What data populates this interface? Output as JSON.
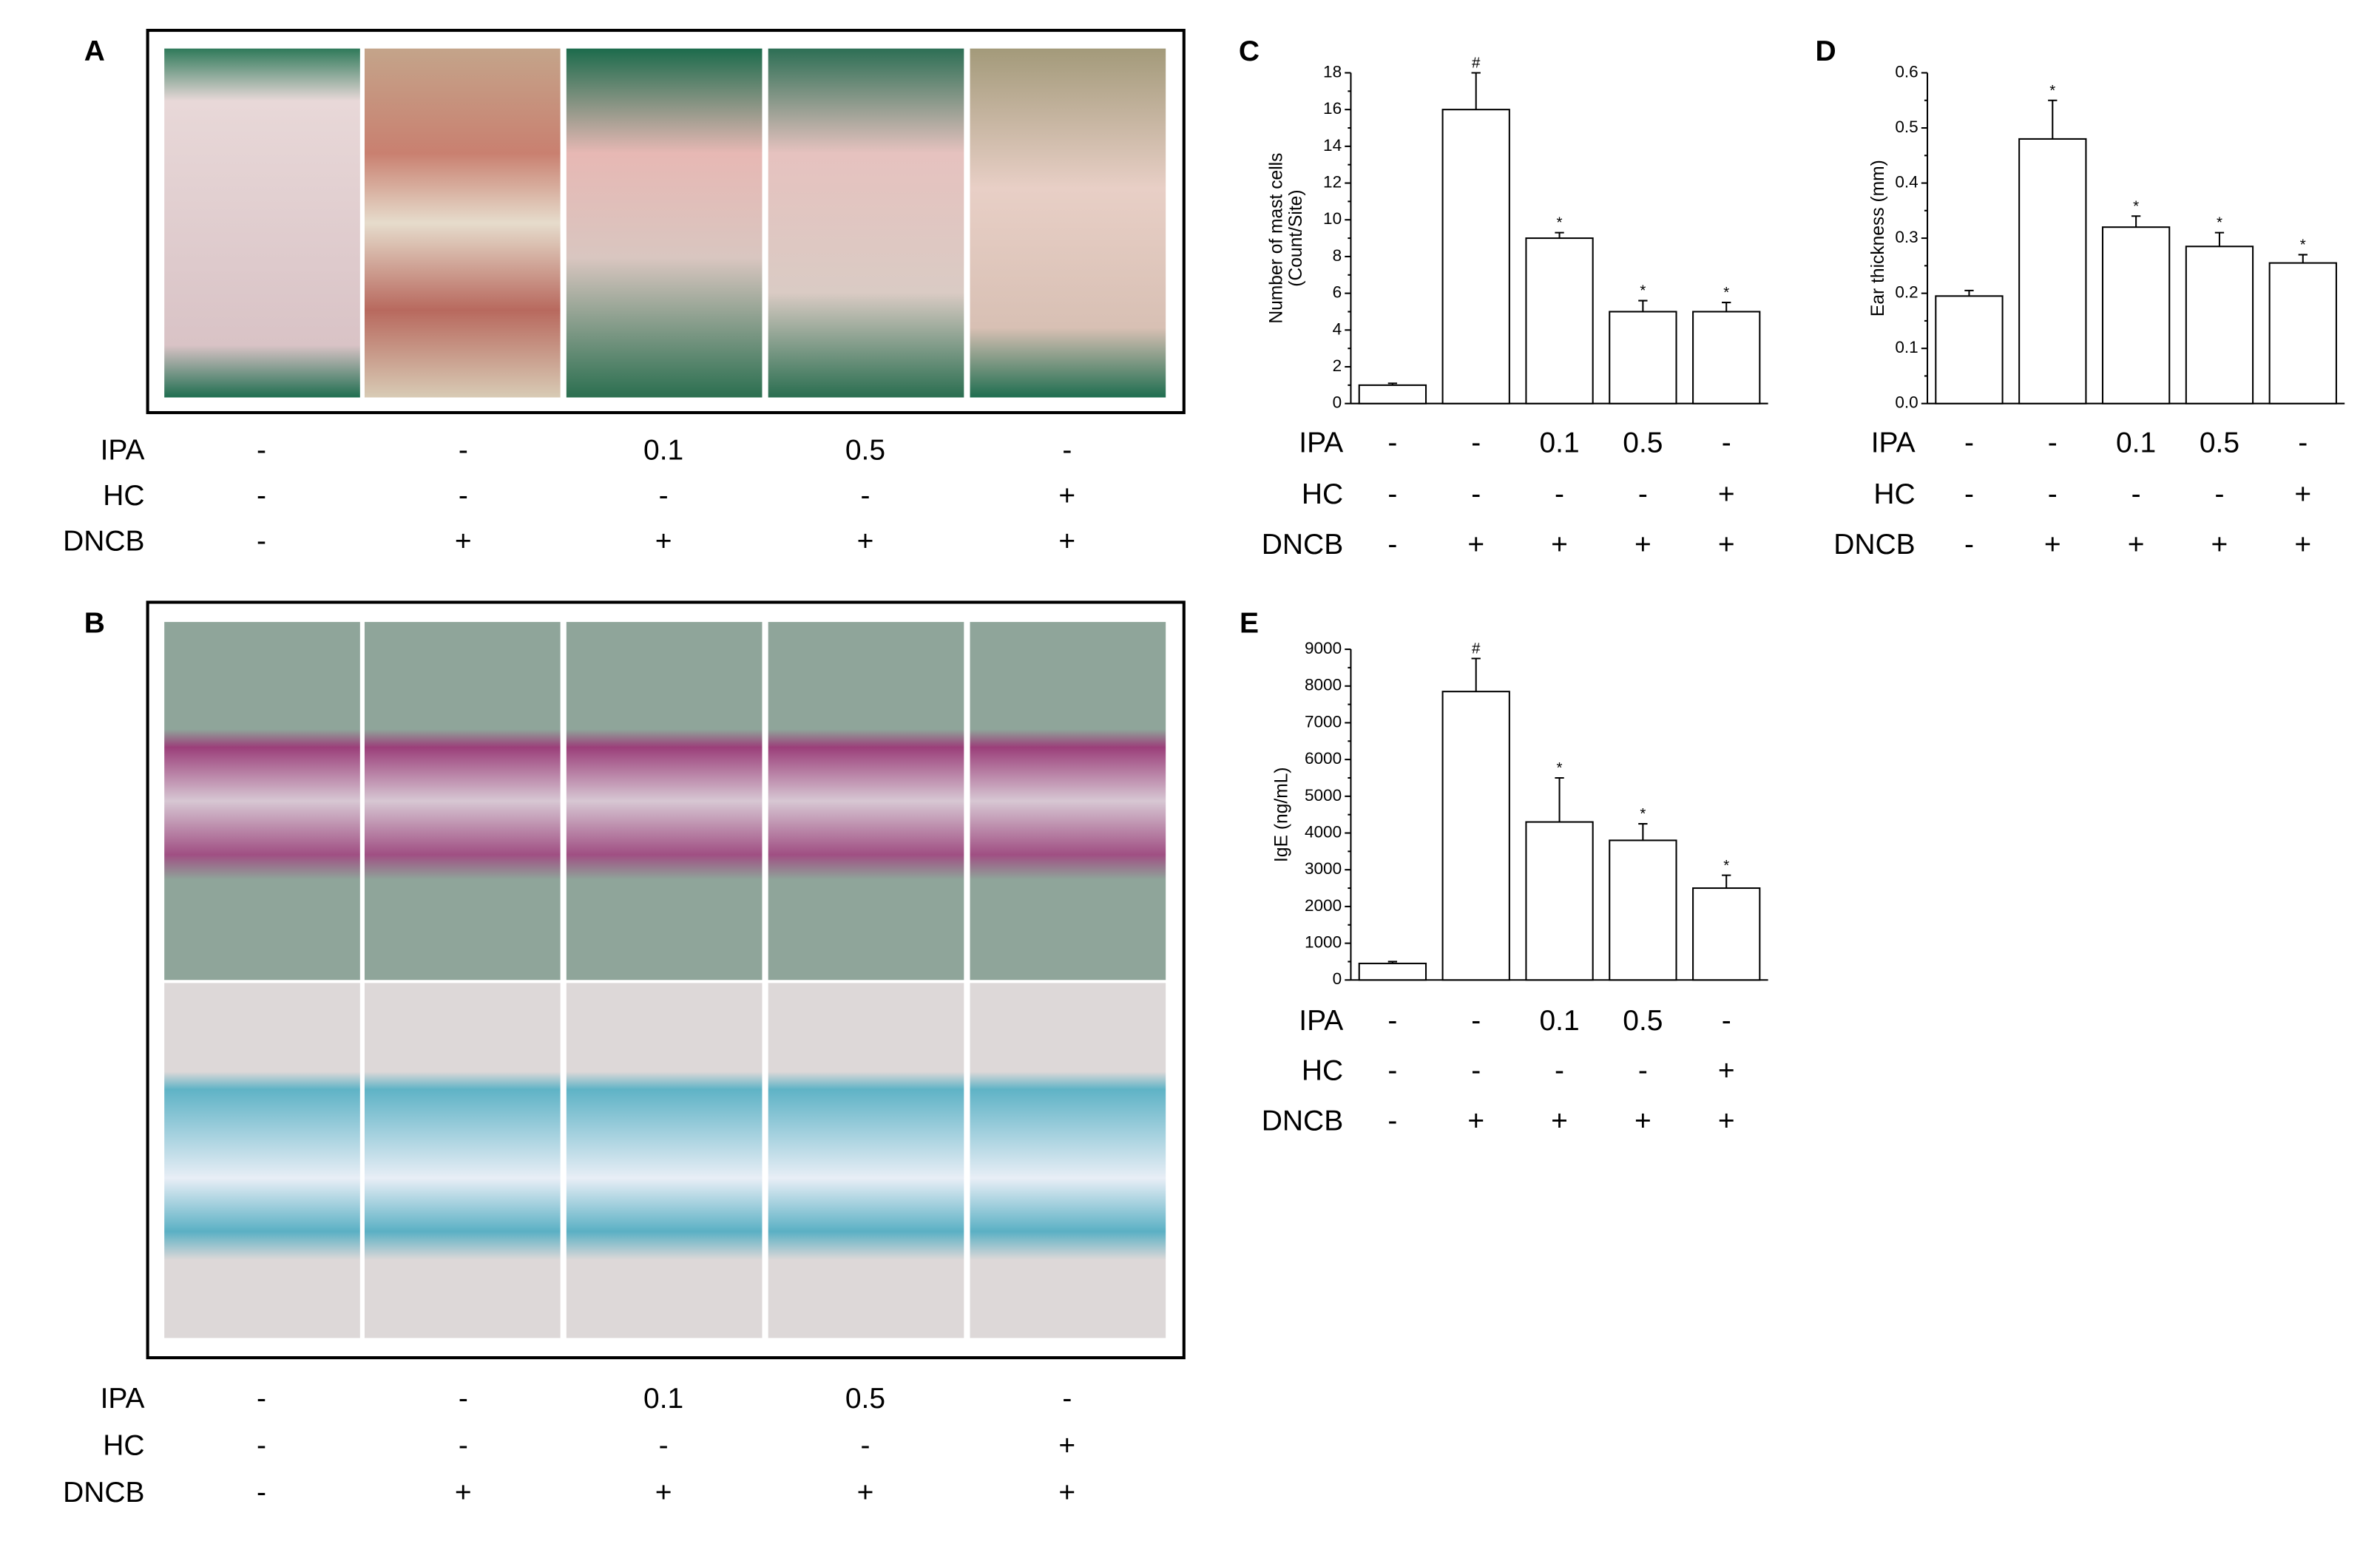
{
  "photo_panels": [
    {
      "label": "A",
      "treatments": [
        {
          "name": "IPA",
          "values": [
            "-",
            "-",
            "0.1",
            "0.5",
            "-"
          ]
        },
        {
          "name": "HC",
          "values": [
            "-",
            "-",
            "-",
            "-",
            "+"
          ]
        },
        {
          "name": "DNCB",
          "values": [
            "-",
            "+",
            "+",
            "+",
            "+"
          ]
        }
      ]
    },
    {
      "label": "B",
      "treatments": [
        {
          "name": "IPA",
          "values": [
            "-",
            "-",
            "0.1",
            "0.5",
            "-"
          ]
        },
        {
          "name": "HC",
          "values": [
            "-",
            "-",
            "-",
            "-",
            "+"
          ]
        },
        {
          "name": "DNCB",
          "values": [
            "-",
            "+",
            "+",
            "+",
            "+"
          ]
        }
      ]
    }
  ],
  "chart_data": [
    {
      "type": "bar",
      "panel": "C",
      "ylabel": [
        "Number of mast cells",
        "(Count/Site)"
      ],
      "values": [
        1.0,
        16.0,
        9.0,
        5.0,
        5.0
      ],
      "errors": [
        0.1,
        2.0,
        0.3,
        0.6,
        0.5
      ],
      "markers": [
        null,
        "#",
        "*",
        "*",
        "*"
      ],
      "color": "#ffffff",
      "ylim": [
        0,
        18
      ],
      "yticks": [
        0,
        2,
        4,
        6,
        8,
        10,
        12,
        14,
        16,
        18
      ],
      "treatments": [
        {
          "name": "IPA",
          "values": [
            "-",
            "-",
            "0.1",
            "0.5",
            "-"
          ]
        },
        {
          "name": "HC",
          "values": [
            "-",
            "-",
            "-",
            "-",
            "+"
          ]
        },
        {
          "name": "DNCB",
          "values": [
            "-",
            "+",
            "+",
            "+",
            "+"
          ]
        }
      ]
    },
    {
      "type": "bar",
      "panel": "D",
      "ylabel": [
        "Ear thickness (mm)"
      ],
      "values": [
        0.195,
        0.48,
        0.32,
        0.285,
        0.255
      ],
      "errors": [
        0.01,
        0.07,
        0.02,
        0.025,
        0.015
      ],
      "markers": [
        null,
        "*",
        "*",
        "*",
        "*"
      ],
      "color": "#ffffff",
      "ylim": [
        0,
        0.6
      ],
      "yticks": [
        {
          "value": 0,
          "label": "0.0"
        },
        0.1,
        0.2,
        0.3,
        0.4,
        0.5,
        0.6
      ],
      "treatments": [
        {
          "name": "IPA",
          "values": [
            "-",
            "-",
            "0.1",
            "0.5",
            "-"
          ]
        },
        {
          "name": "HC",
          "values": [
            "-",
            "-",
            "-",
            "-",
            "+"
          ]
        },
        {
          "name": "DNCB",
          "values": [
            "-",
            "+",
            "+",
            "+",
            "+"
          ]
        }
      ]
    },
    {
      "type": "bar",
      "panel": "E",
      "ylabel": [
        "IgE (ng/mL)"
      ],
      "values": [
        450,
        7850,
        4300,
        3800,
        2500
      ],
      "errors": [
        50,
        900,
        1200,
        450,
        350
      ],
      "markers": [
        null,
        "#",
        "*",
        "*",
        "*"
      ],
      "color": "#ffffff",
      "ylim": [
        0,
        9000
      ],
      "yticks": [
        0,
        1000,
        2000,
        3000,
        4000,
        5000,
        6000,
        7000,
        8000,
        9000
      ],
      "treatments": [
        {
          "name": "IPA",
          "values": [
            "-",
            "-",
            "0.1",
            "0.5",
            "-"
          ]
        },
        {
          "name": "HC",
          "values": [
            "-",
            "-",
            "-",
            "-",
            "+"
          ]
        },
        {
          "name": "DNCB",
          "values": [
            "-",
            "+",
            "+",
            "+",
            "+"
          ]
        }
      ]
    }
  ]
}
